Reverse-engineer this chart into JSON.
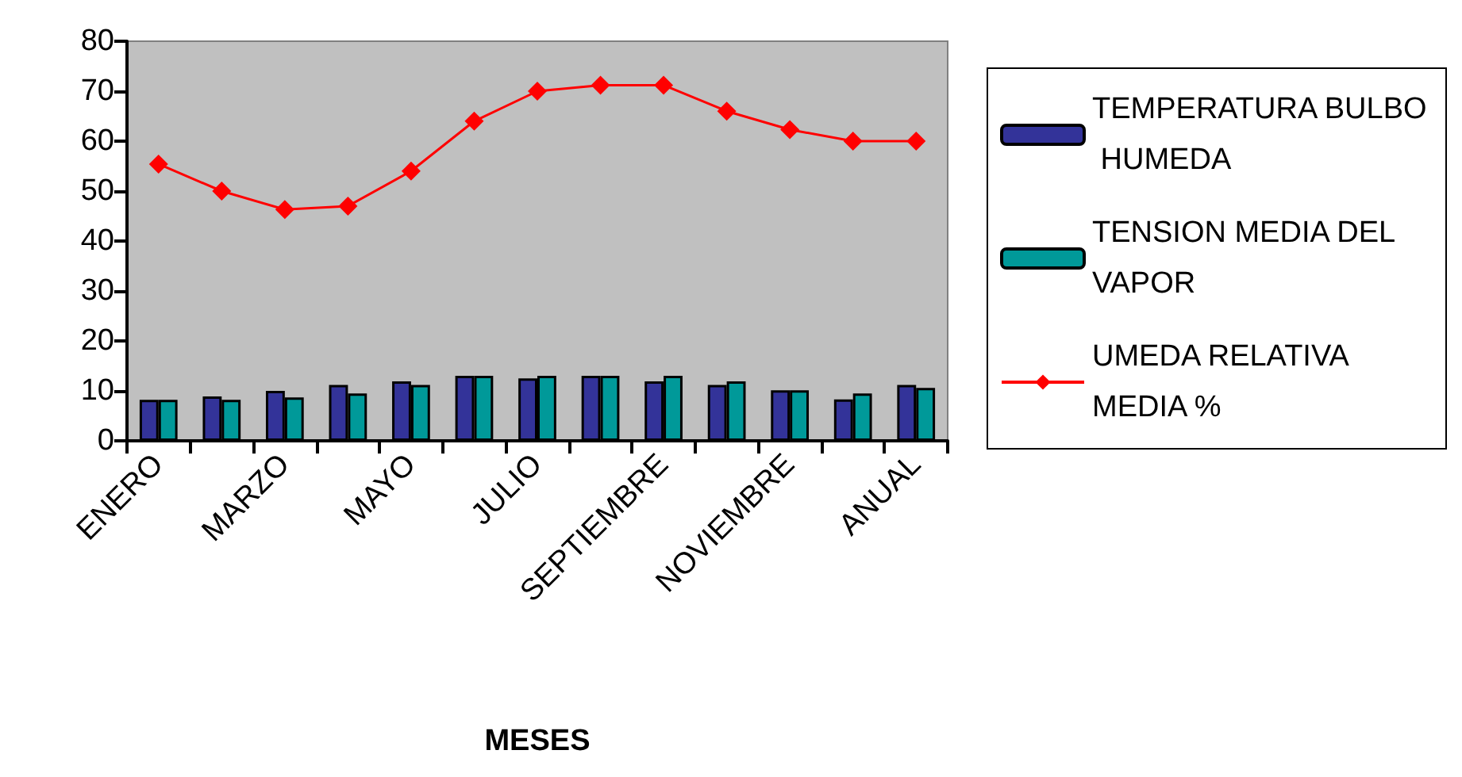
{
  "chart_data": {
    "type": "bar",
    "xlabel": "MESES",
    "categories": [
      "ENERO",
      null,
      "MARZO",
      null,
      "MAYO",
      null,
      "JULIO",
      null,
      "SEPTIEMBRE",
      null,
      "NOVIEMBRE",
      null,
      "ANUAL"
    ],
    "series": [
      {
        "name": "TEMPERATURA BULBO HUMEDA",
        "color": "#333399",
        "values": [
          8.2,
          8.9,
          10.0,
          11.2,
          11.9,
          13.0,
          12.5,
          13.0,
          11.9,
          11.2,
          10.1,
          8.3,
          11.2
        ]
      },
      {
        "name": "TENSION MEDIA DEL VAPOR",
        "color": "#009999",
        "values": [
          8.2,
          8.2,
          8.7,
          9.5,
          11.2,
          13.0,
          13.0,
          13.0,
          13.0,
          11.9,
          10.1,
          9.5,
          10.6
        ]
      },
      {
        "name": "UMEDA RELATIVA MEDIA %",
        "type": "line",
        "color": "#ff0000",
        "marker": "diamond",
        "values": [
          55.4,
          50,
          46.3,
          47,
          54,
          64,
          70,
          71.2,
          71.2,
          66,
          62.3,
          60,
          60
        ]
      }
    ],
    "ylim": [
      0,
      80
    ],
    "yticks": [
      0,
      10,
      20,
      30,
      40,
      50,
      60,
      70,
      80
    ],
    "grid": false,
    "legend": "right"
  }
}
